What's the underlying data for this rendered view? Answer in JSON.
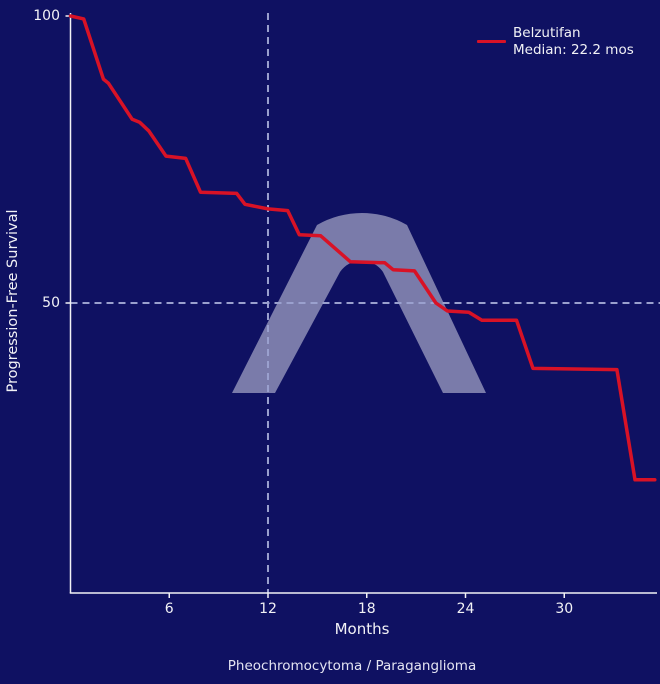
{
  "colors": {
    "background": "#0f1162",
    "curve_red": "#d81226",
    "axis_line": "#f2f2f6",
    "dashed_line": "#9aa0ce",
    "text_primary": "#f2f2f6",
    "text_caption": "#e4e4f2",
    "watermark": "rgba(230,230,242,0.5)"
  },
  "legend": {
    "series_label": "Belzutifan",
    "median_label": "Median: 22.2 mos"
  },
  "caption": "Pheochromocytoma / Paraganglioma",
  "watermark_icon": "lambda-arch",
  "chart_data": {
    "type": "line",
    "style": "kaplan-meier-step",
    "title": "",
    "xlabel": "Months",
    "ylabel": "Progression-Free Survival",
    "xlim": [
      0,
      35.6
    ],
    "ylim": [
      0,
      100
    ],
    "x_ticks": [
      6,
      12,
      18,
      24,
      30
    ],
    "y_ticks": [
      100,
      50
    ],
    "grid": "off",
    "legend_position": "upper right",
    "reference_lines": {
      "horizontal_at_percent": 50,
      "vertical_at_months": 12
    },
    "series": [
      {
        "name": "Belzutifan",
        "median_months": 22.2,
        "points": [
          [
            0,
            100
          ],
          [
            0.8,
            99.5
          ],
          [
            2.0,
            89
          ],
          [
            2.3,
            88.3
          ],
          [
            3.75,
            82
          ],
          [
            4.2,
            81.5
          ],
          [
            4.75,
            80
          ],
          [
            5.8,
            75.6
          ],
          [
            7.0,
            75.2
          ],
          [
            7.9,
            69.3
          ],
          [
            10.1,
            69.1
          ],
          [
            10.6,
            67.2
          ],
          [
            12.0,
            66.4
          ],
          [
            13.2,
            66.1
          ],
          [
            13.9,
            61.9
          ],
          [
            15.2,
            61.7
          ],
          [
            17.0,
            57.2
          ],
          [
            19.1,
            57.0
          ],
          [
            19.6,
            55.8
          ],
          [
            20.9,
            55.6
          ],
          [
            22.2,
            50.0
          ],
          [
            22.9,
            48.6
          ],
          [
            24.2,
            48.4
          ],
          [
            25.0,
            47.0
          ],
          [
            27.1,
            47.0
          ],
          [
            28.1,
            38.6
          ],
          [
            33.2,
            38.4
          ],
          [
            34.3,
            19.2
          ],
          [
            35.5,
            19.2
          ]
        ]
      }
    ]
  }
}
